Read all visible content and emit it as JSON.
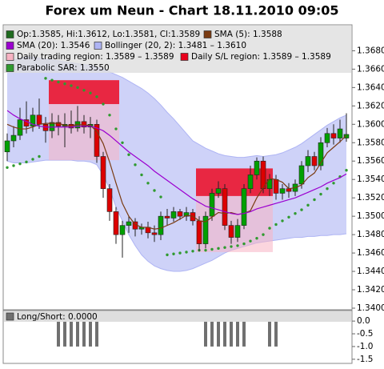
{
  "chart_data": [
    {
      "type": "candlestick",
      "title": "Forex um Neun - Chart 18.11.2010 09:05",
      "series": [
        {
          "name": "Op:1.3585, Hi:1.3612, Lo:1.3581, Cl:1.3589",
          "color": "#1f6b1f",
          "up_color": "#00a000",
          "down_color": "#dd0000",
          "open": [
            1.357,
            1.3582,
            1.3588,
            1.3605,
            1.3598,
            1.361,
            1.36,
            1.3593,
            1.3602,
            1.3598,
            1.36,
            1.3596,
            1.3603,
            1.3597,
            1.36,
            1.3565,
            1.353,
            1.3505,
            1.348,
            1.349,
            1.3494,
            1.3486,
            1.3488,
            1.3482,
            1.348,
            1.35,
            1.3498,
            1.3505,
            1.35,
            1.3504,
            1.3495,
            1.347,
            1.35,
            1.3525,
            1.353,
            1.349,
            1.3477,
            1.349,
            1.353,
            1.3545,
            1.356,
            1.353,
            1.354,
            1.3525,
            1.353,
            1.3527,
            1.3535,
            1.3555,
            1.3565,
            1.3555,
            1.358,
            1.359,
            1.3585,
            1.3585
          ],
          "high": [
            1.359,
            1.3598,
            1.3618,
            1.3625,
            1.3618,
            1.3628,
            1.3608,
            1.3612,
            1.361,
            1.3612,
            1.3615,
            1.362,
            1.361,
            1.3608,
            1.3605,
            1.357,
            1.3535,
            1.351,
            1.3495,
            1.35,
            1.3498,
            1.3492,
            1.3494,
            1.349,
            1.3505,
            1.3508,
            1.351,
            1.3508,
            1.351,
            1.3508,
            1.35,
            1.3505,
            1.353,
            1.3538,
            1.3535,
            1.3495,
            1.3497,
            1.3535,
            1.3555,
            1.3564,
            1.3565,
            1.3546,
            1.3545,
            1.3535,
            1.3536,
            1.354,
            1.356,
            1.3572,
            1.357,
            1.3586,
            1.3596,
            1.36,
            1.3605,
            1.3612
          ],
          "low": [
            1.356,
            1.3575,
            1.3583,
            1.359,
            1.3592,
            1.3595,
            1.358,
            1.3585,
            1.3588,
            1.3575,
            1.359,
            1.3592,
            1.359,
            1.3585,
            1.3558,
            1.352,
            1.3495,
            1.347,
            1.3455,
            1.3482,
            1.3478,
            1.348,
            1.3476,
            1.3472,
            1.3474,
            1.349,
            1.3494,
            1.3496,
            1.3495,
            1.349,
            1.3462,
            1.3465,
            1.3495,
            1.352,
            1.3485,
            1.347,
            1.3472,
            1.3486,
            1.3525,
            1.354,
            1.3525,
            1.3522,
            1.3518,
            1.3518,
            1.352,
            1.3522,
            1.353,
            1.3548,
            1.355,
            1.355,
            1.3575,
            1.3578,
            1.358,
            1.3581
          ],
          "close": [
            1.3582,
            1.3588,
            1.3605,
            1.3598,
            1.361,
            1.36,
            1.3593,
            1.3602,
            1.3598,
            1.36,
            1.3596,
            1.3603,
            1.3597,
            1.36,
            1.3565,
            1.353,
            1.3505,
            1.348,
            1.349,
            1.3494,
            1.3486,
            1.3488,
            1.3482,
            1.348,
            1.35,
            1.3498,
            1.3505,
            1.35,
            1.3504,
            1.3495,
            1.347,
            1.35,
            1.3525,
            1.353,
            1.349,
            1.3477,
            1.349,
            1.353,
            1.3545,
            1.356,
            1.353,
            1.354,
            1.3525,
            1.353,
            1.3527,
            1.3535,
            1.3555,
            1.3565,
            1.3555,
            1.358,
            1.359,
            1.3585,
            1.3595,
            1.3589
          ]
        }
      ],
      "overlays": [
        {
          "name": "SMA (5): 1.3588",
          "kind": "line",
          "color": "#7a3b12",
          "values": [
            1.36,
            1.3597,
            1.3595,
            1.3595,
            1.3597,
            1.36,
            1.3601,
            1.3601,
            1.3601,
            1.3599,
            1.3598,
            1.36,
            1.3599,
            1.3599,
            1.3592,
            1.3579,
            1.3559,
            1.3536,
            1.3514,
            1.35,
            1.3491,
            1.3488,
            1.3488,
            1.3486,
            1.3487,
            1.349,
            1.3493,
            1.3497,
            1.3501,
            1.35,
            1.3495,
            1.3494,
            1.3499,
            1.3504,
            1.3503,
            1.3504,
            1.3502,
            1.3503,
            1.3506,
            1.352,
            1.3531,
            1.3541,
            1.354,
            1.3537,
            1.353,
            1.3531,
            1.3534,
            1.3542,
            1.3547,
            1.3558,
            1.3569,
            1.3575,
            1.3581,
            1.3588
          ]
        },
        {
          "name": "SMA (20): 1.3546",
          "kind": "line",
          "color": "#9b00d0",
          "values": [
            1.3615,
            1.361,
            1.3606,
            1.3603,
            1.36,
            1.3598,
            1.3597,
            1.3597,
            1.3597,
            1.3597,
            1.3597,
            1.3598,
            1.3598,
            1.3598,
            1.3596,
            1.3593,
            1.3588,
            1.3582,
            1.3576,
            1.357,
            1.3565,
            1.356,
            1.3555,
            1.3549,
            1.3544,
            1.3539,
            1.3534,
            1.3529,
            1.3524,
            1.3519,
            1.3515,
            1.3511,
            1.3509,
            1.3507,
            1.3505,
            1.3503,
            1.3502,
            1.3503,
            1.3505,
            1.3508,
            1.351,
            1.3512,
            1.3514,
            1.3516,
            1.3518,
            1.352,
            1.3523,
            1.3526,
            1.3529,
            1.3532,
            1.3536,
            1.3539,
            1.3542,
            1.3546
          ]
        },
        {
          "name": "Bollinger (20, 2): 1.3481 – 1.3610",
          "kind": "band",
          "color": "#aeb4f4",
          "upper": [
            1.3668,
            1.367,
            1.3672,
            1.3673,
            1.3673,
            1.3672,
            1.3671,
            1.367,
            1.3669,
            1.3668,
            1.3667,
            1.3666,
            1.3665,
            1.3664,
            1.3662,
            1.366,
            1.3657,
            1.3654,
            1.3651,
            1.3647,
            1.3643,
            1.3639,
            1.3634,
            1.3628,
            1.3621,
            1.3613,
            1.3606,
            1.3598,
            1.359,
            1.3582,
            1.3578,
            1.3574,
            1.3571,
            1.3568,
            1.3566,
            1.3565,
            1.3564,
            1.3564,
            1.3565,
            1.3566,
            1.3565,
            1.3566,
            1.3567,
            1.3569,
            1.3572,
            1.3575,
            1.3579,
            1.3584,
            1.3589,
            1.3594,
            1.3599,
            1.3603,
            1.3607,
            1.361
          ],
          "lower": [
            1.356,
            1.3558,
            1.3558,
            1.3558,
            1.3559,
            1.356,
            1.3561,
            1.3561,
            1.3561,
            1.3561,
            1.3561,
            1.356,
            1.356,
            1.3559,
            1.3556,
            1.3545,
            1.353,
            1.351,
            1.3495,
            1.348,
            1.3468,
            1.3458,
            1.3451,
            1.3446,
            1.3443,
            1.3441,
            1.344,
            1.344,
            1.3441,
            1.3443,
            1.3446,
            1.3449,
            1.3452,
            1.3456,
            1.346,
            1.3463,
            1.3465,
            1.3467,
            1.3469,
            1.3471,
            1.3472,
            1.3473,
            1.3474,
            1.3475,
            1.3476,
            1.3477,
            1.3477,
            1.3478,
            1.3478,
            1.3479,
            1.3479,
            1.348,
            1.348,
            1.3481
          ]
        },
        {
          "name": "Parabolic SAR: 1.3550",
          "kind": "dots",
          "color": "#2f9a2f",
          "values": [
            1.3553,
            1.3555,
            1.3557,
            1.3559,
            1.3562,
            1.3565,
            1.365,
            1.3648,
            1.3646,
            1.3644,
            1.3642,
            1.364,
            1.3637,
            1.3634,
            1.363,
            1.3622,
            1.361,
            1.3595,
            1.358,
            1.3567,
            1.3556,
            1.3545,
            1.3536,
            1.3528,
            1.3521,
            1.3458,
            1.3459,
            1.346,
            1.3461,
            1.3462,
            1.3463,
            1.3463,
            1.3464,
            1.3465,
            1.3466,
            1.3467,
            1.3468,
            1.347,
            1.3473,
            1.3476,
            1.348,
            1.3487,
            1.3491,
            1.3495,
            1.3499,
            1.3503,
            1.3507,
            1.3512,
            1.3518,
            1.3524,
            1.353,
            1.3536,
            1.3543,
            1.355
          ]
        }
      ],
      "regions": [
        {
          "name": "Daily trading region: 1.3589 – 1.3589",
          "color": "#f7b3c3",
          "spans": [
            {
              "start": 7,
              "end": 17,
              "top": 1.3648,
              "bottom": 1.3561
            },
            {
              "start": 30,
              "end": 41,
              "top": 1.3552,
              "bottom": 1.3461
            }
          ]
        },
        {
          "name": "Daily S/L region: 1.3589 – 1.3589",
          "color": "#e8001c",
          "spans": [
            {
              "start": 7,
              "end": 17,
              "top": 1.3648,
              "bottom": 1.3622
            },
            {
              "start": 30,
              "end": 41,
              "top": 1.3552,
              "bottom": 1.3522
            }
          ]
        }
      ],
      "ylim": [
        1.34,
        1.3703
      ],
      "yticks": [
        {
          "value": 1.34,
          "label": "1.3400"
        },
        {
          "value": 1.342,
          "label": "1.3420"
        },
        {
          "value": 1.344,
          "label": "1.3440"
        },
        {
          "value": 1.346,
          "label": "1.3460"
        },
        {
          "value": 1.348,
          "label": "1.3480"
        },
        {
          "value": 1.35,
          "label": "1.3500"
        },
        {
          "value": 1.352,
          "label": "1.3520"
        },
        {
          "value": 1.354,
          "label": "1.3540"
        },
        {
          "value": 1.356,
          "label": "1.3560"
        },
        {
          "value": 1.358,
          "label": "1.3580"
        },
        {
          "value": 1.36,
          "label": "1.3600"
        },
        {
          "value": 1.362,
          "label": "1.3620"
        },
        {
          "value": 1.364,
          "label": "1.3640"
        },
        {
          "value": 1.366,
          "label": "1.3660"
        },
        {
          "value": 1.368,
          "label": "1.3680"
        }
      ]
    },
    {
      "type": "bar",
      "series": [
        {
          "name": "Long/Short: 0.0000",
          "color": "#707070",
          "values": [
            0,
            0,
            0,
            0,
            0,
            0,
            0,
            0,
            -1,
            -1,
            -1,
            -1,
            -1,
            -1,
            -1,
            0,
            0,
            0,
            0,
            0,
            0,
            0,
            0,
            0,
            0,
            0,
            0,
            0,
            0,
            0,
            0,
            -1,
            -1,
            -1,
            -1,
            -1,
            -1,
            -1,
            0,
            0,
            0,
            -1,
            -1,
            0,
            0,
            0,
            0,
            0,
            0,
            0,
            0,
            0,
            0,
            0
          ]
        }
      ],
      "ylim": [
        -1.6,
        0.35
      ],
      "yticks": [
        {
          "value": 0,
          "label": "0.0"
        },
        {
          "value": -0.5,
          "label": "-0.5"
        },
        {
          "value": -1,
          "label": "-1.0"
        },
        {
          "value": -1.5,
          "label": "-1.5"
        }
      ]
    }
  ]
}
